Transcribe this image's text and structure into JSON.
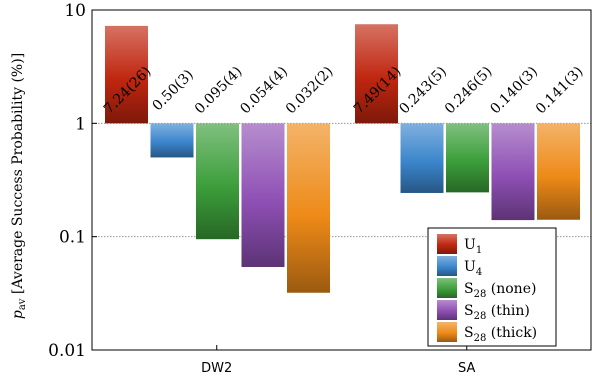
{
  "chart_data": {
    "type": "bar",
    "ylabel": "p_av [Average Success Probability (%)]",
    "ylabel_parts": {
      "p": "p",
      "sub": "av",
      "rest": " [Average Success Probability (%)]"
    },
    "yscale": "log",
    "ylim": [
      0.01,
      10
    ],
    "yticks": [
      {
        "value": 10,
        "label": "10"
      },
      {
        "value": 1,
        "label": "1"
      },
      {
        "value": 0.1,
        "label": "0.1"
      },
      {
        "value": 0.01,
        "label": "0.01"
      }
    ],
    "grid": "dotted horizontal at 1 and 0.1",
    "bar_baseline": 1,
    "categories": [
      "DW2",
      "SA"
    ],
    "series": [
      {
        "name": "U1",
        "name_base": "U",
        "name_sub": "1",
        "name_suffix": "",
        "color": "#c0260f",
        "values": [
          7.24,
          7.49
        ],
        "labels": [
          "7.24(26)",
          "7.49(14)"
        ]
      },
      {
        "name": "U4",
        "name_base": "U",
        "name_sub": "4",
        "name_suffix": "",
        "color": "#3b86cc",
        "values": [
          0.5,
          0.243
        ],
        "labels": [
          "0.50(3)",
          "0.243(5)"
        ]
      },
      {
        "name": "S28 (none)",
        "name_base": "S",
        "name_sub": "28",
        "name_suffix": " (none)",
        "color": "#3c9e3a",
        "values": [
          0.095,
          0.246
        ],
        "labels": [
          "0.095(4)",
          "0.246(5)"
        ]
      },
      {
        "name": "S28 (thin)",
        "name_base": "S",
        "name_sub": "28",
        "name_suffix": " (thin)",
        "color": "#8e4fb4",
        "values": [
          0.054,
          0.14
        ],
        "labels": [
          "0.054(4)",
          "0.140(3)"
        ]
      },
      {
        "name": "S28 (thick)",
        "name_base": "S",
        "name_sub": "28",
        "name_suffix": " (thick)",
        "color": "#ee8a18",
        "values": [
          0.032,
          0.141
        ],
        "labels": [
          "0.032(2)",
          "0.141(3)"
        ]
      }
    ],
    "legend_position": "bottom-right"
  }
}
